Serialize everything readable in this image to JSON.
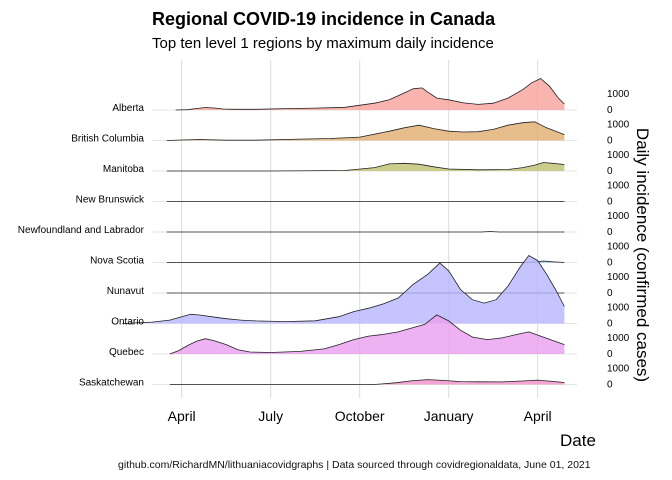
{
  "chart_data": {
    "type": "area",
    "title": "Regional COVID-19 incidence in Canada",
    "subtitle": "Top ten level 1 regions by maximum daily incidence",
    "xlabel": "Date",
    "ylabel": "Daily incidence (confirmed cases)",
    "caption": "github.com/RichardMN/lithuaniacovidgraphs | Data sourced through covidregionaldata, June 01, 2021",
    "x_ticks": [
      "April",
      "July",
      "October",
      "January",
      "April"
    ],
    "y_ticks": [
      "0",
      "1000"
    ],
    "x_unit": "months since January 2020",
    "series": [
      {
        "name": "Alberta",
        "color": "#F8A19B",
        "points": [
          [
            2.8,
            0
          ],
          [
            3.2,
            20
          ],
          [
            3.5,
            90
          ],
          [
            3.8,
            150
          ],
          [
            4.1,
            120
          ],
          [
            4.4,
            60
          ],
          [
            4.8,
            40
          ],
          [
            5.5,
            40
          ],
          [
            6.5,
            80
          ],
          [
            7.5,
            110
          ],
          [
            8.5,
            160
          ],
          [
            9.5,
            400
          ],
          [
            10.0,
            600
          ],
          [
            10.5,
            1000
          ],
          [
            10.8,
            1250
          ],
          [
            11.1,
            1300
          ],
          [
            11.3,
            1050
          ],
          [
            11.6,
            700
          ],
          [
            12.0,
            600
          ],
          [
            12.5,
            420
          ],
          [
            13.0,
            330
          ],
          [
            13.5,
            400
          ],
          [
            14.0,
            700
          ],
          [
            14.5,
            1200
          ],
          [
            14.8,
            1600
          ],
          [
            15.1,
            1850
          ],
          [
            15.4,
            1400
          ],
          [
            15.7,
            700
          ],
          [
            15.9,
            350
          ]
        ]
      },
      {
        "name": "British Columbia",
        "color": "#E1AE6E",
        "points": [
          [
            2.5,
            0
          ],
          [
            3.0,
            30
          ],
          [
            3.6,
            60
          ],
          [
            4.5,
            20
          ],
          [
            5.5,
            20
          ],
          [
            7.0,
            80
          ],
          [
            8.0,
            120
          ],
          [
            9.0,
            200
          ],
          [
            10.0,
            550
          ],
          [
            10.5,
            750
          ],
          [
            11.0,
            900
          ],
          [
            11.5,
            700
          ],
          [
            12.0,
            550
          ],
          [
            12.5,
            500
          ],
          [
            13.0,
            520
          ],
          [
            13.5,
            650
          ],
          [
            14.0,
            900
          ],
          [
            14.5,
            1050
          ],
          [
            14.9,
            1100
          ],
          [
            15.3,
            750
          ],
          [
            15.9,
            350
          ]
        ]
      },
      {
        "name": "Manitoba",
        "color": "#BFC06F",
        "points": [
          [
            2.5,
            0
          ],
          [
            6.0,
            0
          ],
          [
            8.5,
            30
          ],
          [
            9.5,
            200
          ],
          [
            10.0,
            420
          ],
          [
            10.5,
            450
          ],
          [
            11.0,
            400
          ],
          [
            11.5,
            250
          ],
          [
            12.0,
            120
          ],
          [
            13.0,
            70
          ],
          [
            14.0,
            90
          ],
          [
            14.5,
            200
          ],
          [
            14.9,
            350
          ],
          [
            15.2,
            500
          ],
          [
            15.5,
            450
          ],
          [
            15.9,
            380
          ]
        ]
      },
      {
        "name": "New Brunswick",
        "color": "#8ED39A",
        "points": [
          [
            2.5,
            0
          ],
          [
            15.9,
            0
          ]
        ]
      },
      {
        "name": "Newfoundland and Labrador",
        "color": "#6FD0C0",
        "points": [
          [
            2.5,
            0
          ],
          [
            13.1,
            0
          ],
          [
            13.4,
            30
          ],
          [
            13.7,
            0
          ],
          [
            15.9,
            0
          ]
        ]
      },
      {
        "name": "Nova Scotia",
        "color": "#5EC8D8",
        "points": [
          [
            2.5,
            0
          ],
          [
            14.5,
            0
          ],
          [
            15.0,
            40
          ],
          [
            15.2,
            90
          ],
          [
            15.5,
            40
          ],
          [
            15.9,
            0
          ]
        ]
      },
      {
        "name": "Nunavut",
        "color": "#7FA8F0",
        "points": [
          [
            2.5,
            0
          ],
          [
            15.9,
            0
          ]
        ]
      },
      {
        "name": "Ontario",
        "color": "#B8B5FF",
        "points": [
          [
            1.0,
            0
          ],
          [
            2.0,
            80
          ],
          [
            2.6,
            200
          ],
          [
            3.0,
            400
          ],
          [
            3.3,
            540
          ],
          [
            3.6,
            500
          ],
          [
            4.0,
            400
          ],
          [
            4.5,
            280
          ],
          [
            5.0,
            200
          ],
          [
            5.5,
            150
          ],
          [
            6.5,
            110
          ],
          [
            7.5,
            160
          ],
          [
            8.3,
            400
          ],
          [
            8.8,
            700
          ],
          [
            9.3,
            900
          ],
          [
            9.8,
            1150
          ],
          [
            10.3,
            1500
          ],
          [
            10.8,
            2300
          ],
          [
            11.3,
            2900
          ],
          [
            11.7,
            3550
          ],
          [
            12.0,
            3100
          ],
          [
            12.4,
            2000
          ],
          [
            12.8,
            1400
          ],
          [
            13.2,
            1200
          ],
          [
            13.6,
            1400
          ],
          [
            14.0,
            2200
          ],
          [
            14.4,
            3300
          ],
          [
            14.7,
            4000
          ],
          [
            15.0,
            3700
          ],
          [
            15.3,
            2900
          ],
          [
            15.6,
            2000
          ],
          [
            15.9,
            1000
          ]
        ]
      },
      {
        "name": "Quebec",
        "color": "#EA9DEF",
        "points": [
          [
            2.6,
            0
          ],
          [
            2.9,
            200
          ],
          [
            3.2,
            500
          ],
          [
            3.5,
            750
          ],
          [
            3.8,
            900
          ],
          [
            4.1,
            780
          ],
          [
            4.5,
            550
          ],
          [
            4.9,
            250
          ],
          [
            5.3,
            120
          ],
          [
            6.0,
            90
          ],
          [
            7.0,
            150
          ],
          [
            7.8,
            300
          ],
          [
            8.3,
            550
          ],
          [
            8.8,
            850
          ],
          [
            9.3,
            1050
          ],
          [
            9.8,
            1150
          ],
          [
            10.3,
            1300
          ],
          [
            10.8,
            1550
          ],
          [
            11.2,
            1750
          ],
          [
            11.6,
            2300
          ],
          [
            12.0,
            1950
          ],
          [
            12.4,
            1400
          ],
          [
            12.8,
            1000
          ],
          [
            13.3,
            850
          ],
          [
            13.8,
            950
          ],
          [
            14.3,
            1150
          ],
          [
            14.7,
            1300
          ],
          [
            15.1,
            1050
          ],
          [
            15.5,
            800
          ],
          [
            15.9,
            550
          ]
        ]
      },
      {
        "name": "Saskatchewan",
        "color": "#F38EC8",
        "points": [
          [
            2.6,
            0
          ],
          [
            9.5,
            0
          ],
          [
            10.2,
            100
          ],
          [
            10.8,
            230
          ],
          [
            11.3,
            290
          ],
          [
            11.8,
            240
          ],
          [
            12.4,
            170
          ],
          [
            13.0,
            160
          ],
          [
            13.8,
            150
          ],
          [
            14.4,
            200
          ],
          [
            15.0,
            260
          ],
          [
            15.5,
            180
          ],
          [
            15.9,
            120
          ]
        ]
      }
    ]
  }
}
